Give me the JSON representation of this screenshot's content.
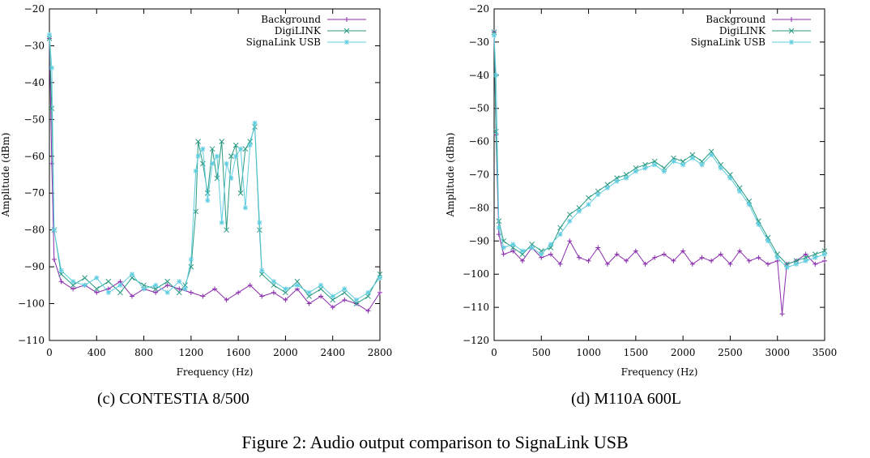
{
  "figure_caption": "Figure 2: Audio output comparison to SignaLink USB",
  "subcaptions": [
    "(c) CONTESTIA 8/500",
    "(d) M110A 600L"
  ],
  "colors": {
    "Background": "#8a2cae",
    "DigiLINK": "#2a9a82",
    "SignaLink USB": "#5fcde0"
  },
  "chart_data": [
    {
      "type": "line",
      "title": "",
      "xlabel": "Frequency (Hz)",
      "ylabel": "Amplitude (dBm)",
      "xlim": [
        0,
        2800
      ],
      "ylim": [
        -110,
        -20
      ],
      "xticks": [
        0,
        400,
        800,
        1200,
        1600,
        2000,
        2400,
        2800
      ],
      "yticks": [
        -20,
        -30,
        -40,
        -50,
        -60,
        -70,
        -80,
        -90,
        -100,
        -110
      ],
      "ytick_labels": [
        "−20",
        "−30",
        "−40",
        "−50",
        "−60",
        "−70",
        "−80",
        "−90",
        "−100",
        "−110"
      ],
      "legend_position": "top-right",
      "series": [
        {
          "name": "Background",
          "x": [
            0,
            20,
            40,
            100,
            200,
            300,
            400,
            500,
            600,
            700,
            800,
            900,
            1000,
            1100,
            1200,
            1300,
            1400,
            1500,
            1600,
            1700,
            1800,
            1900,
            2000,
            2100,
            2200,
            2300,
            2400,
            2500,
            2600,
            2700,
            2800
          ],
          "y": [
            -28,
            -62,
            -88,
            -94,
            -96,
            -95,
            -97,
            -96,
            -94,
            -98,
            -96,
            -97,
            -95,
            -96,
            -97,
            -98,
            -96,
            -99,
            -97,
            -95,
            -98,
            -97,
            -99,
            -96,
            -100,
            -98,
            -101,
            -99,
            -100,
            -102,
            -97
          ]
        },
        {
          "name": "DigiLINK",
          "x": [
            0,
            20,
            40,
            100,
            200,
            300,
            400,
            500,
            600,
            700,
            800,
            900,
            1000,
            1100,
            1150,
            1200,
            1240,
            1260,
            1300,
            1340,
            1380,
            1420,
            1460,
            1500,
            1540,
            1580,
            1620,
            1660,
            1700,
            1740,
            1780,
            1800,
            1900,
            2000,
            2100,
            2200,
            2300,
            2400,
            2500,
            2600,
            2700,
            2800
          ],
          "y": [
            -28,
            -47,
            -80,
            -92,
            -95,
            -93,
            -96,
            -94,
            -97,
            -93,
            -95,
            -96,
            -94,
            -97,
            -95,
            -90,
            -75,
            -56,
            -62,
            -70,
            -58,
            -66,
            -56,
            -80,
            -60,
            -57,
            -70,
            -58,
            -56,
            -52,
            -80,
            -92,
            -95,
            -97,
            -94,
            -98,
            -96,
            -99,
            -97,
            -100,
            -98,
            -92
          ]
        },
        {
          "name": "SignaLink USB",
          "x": [
            0,
            20,
            40,
            100,
            200,
            300,
            400,
            500,
            600,
            700,
            800,
            900,
            1000,
            1100,
            1150,
            1200,
            1240,
            1260,
            1300,
            1340,
            1380,
            1420,
            1460,
            1500,
            1540,
            1580,
            1620,
            1660,
            1700,
            1740,
            1780,
            1800,
            1900,
            2000,
            2100,
            2200,
            2300,
            2400,
            2500,
            2600,
            2700,
            2800
          ],
          "y": [
            -27,
            -36,
            -80,
            -91,
            -94,
            -95,
            -93,
            -97,
            -95,
            -92,
            -96,
            -95,
            -97,
            -94,
            -96,
            -88,
            -64,
            -60,
            -58,
            -72,
            -62,
            -60,
            -78,
            -62,
            -66,
            -60,
            -58,
            -74,
            -57,
            -51,
            -78,
            -91,
            -94,
            -96,
            -95,
            -97,
            -95,
            -98,
            -96,
            -99,
            -97,
            -93
          ]
        }
      ]
    },
    {
      "type": "line",
      "title": "",
      "xlabel": "Frequency (Hz)",
      "ylabel": "Amplitude (dBm)",
      "xlim": [
        0,
        3500
      ],
      "ylim": [
        -120,
        -20
      ],
      "xticks": [
        0,
        500,
        1000,
        1500,
        2000,
        2500,
        3000,
        3500
      ],
      "yticks": [
        -20,
        -30,
        -40,
        -50,
        -60,
        -70,
        -80,
        -90,
        -100,
        -110,
        -120
      ],
      "ytick_labels": [
        "−20",
        "−30",
        "−40",
        "−50",
        "−60",
        "−70",
        "−80",
        "−90",
        "−100",
        "−110",
        "−120"
      ],
      "legend_position": "top-right",
      "series": [
        {
          "name": "Background",
          "x": [
            0,
            20,
            50,
            100,
            200,
            300,
            400,
            500,
            600,
            700,
            800,
            900,
            1000,
            1100,
            1200,
            1300,
            1400,
            1500,
            1600,
            1700,
            1800,
            1900,
            2000,
            2100,
            2200,
            2300,
            2400,
            2500,
            2600,
            2700,
            2800,
            2900,
            3000,
            3050,
            3100,
            3200,
            3300,
            3400,
            3500
          ],
          "y": [
            -27,
            -58,
            -88,
            -94,
            -93,
            -96,
            -92,
            -95,
            -94,
            -97,
            -90,
            -95,
            -96,
            -92,
            -97,
            -94,
            -96,
            -93,
            -97,
            -95,
            -94,
            -96,
            -93,
            -97,
            -95,
            -96,
            -94,
            -97,
            -93,
            -96,
            -95,
            -97,
            -96,
            -112,
            -97,
            -96,
            -94,
            -97,
            -96
          ]
        },
        {
          "name": "DigiLINK",
          "x": [
            0,
            20,
            50,
            100,
            200,
            300,
            400,
            500,
            600,
            700,
            800,
            900,
            1000,
            1100,
            1200,
            1300,
            1400,
            1500,
            1600,
            1700,
            1800,
            1900,
            2000,
            2100,
            2200,
            2300,
            2400,
            2500,
            2600,
            2700,
            2800,
            2900,
            3000,
            3100,
            3200,
            3300,
            3400,
            3500
          ],
          "y": [
            -27,
            -57,
            -84,
            -90,
            -92,
            -94,
            -91,
            -93,
            -92,
            -86,
            -82,
            -80,
            -77,
            -75,
            -73,
            -71,
            -70,
            -68,
            -67,
            -66,
            -68,
            -65,
            -66,
            -64,
            -66,
            -63,
            -67,
            -70,
            -74,
            -78,
            -84,
            -89,
            -94,
            -97,
            -96,
            -95,
            -94,
            -93
          ]
        },
        {
          "name": "SignaLink USB",
          "x": [
            0,
            20,
            50,
            100,
            200,
            300,
            400,
            500,
            600,
            700,
            800,
            900,
            1000,
            1100,
            1200,
            1300,
            1400,
            1500,
            1600,
            1700,
            1800,
            1900,
            2000,
            2100,
            2200,
            2300,
            2400,
            2500,
            2600,
            2700,
            2800,
            2900,
            3000,
            3100,
            3200,
            3300,
            3400,
            3500
          ],
          "y": [
            -28,
            -40,
            -86,
            -92,
            -91,
            -93,
            -92,
            -94,
            -91,
            -88,
            -84,
            -81,
            -79,
            -76,
            -74,
            -72,
            -71,
            -69,
            -68,
            -67,
            -69,
            -66,
            -67,
            -65,
            -67,
            -64,
            -68,
            -71,
            -75,
            -79,
            -85,
            -90,
            -95,
            -98,
            -97,
            -96,
            -95,
            -94
          ]
        }
      ]
    }
  ]
}
